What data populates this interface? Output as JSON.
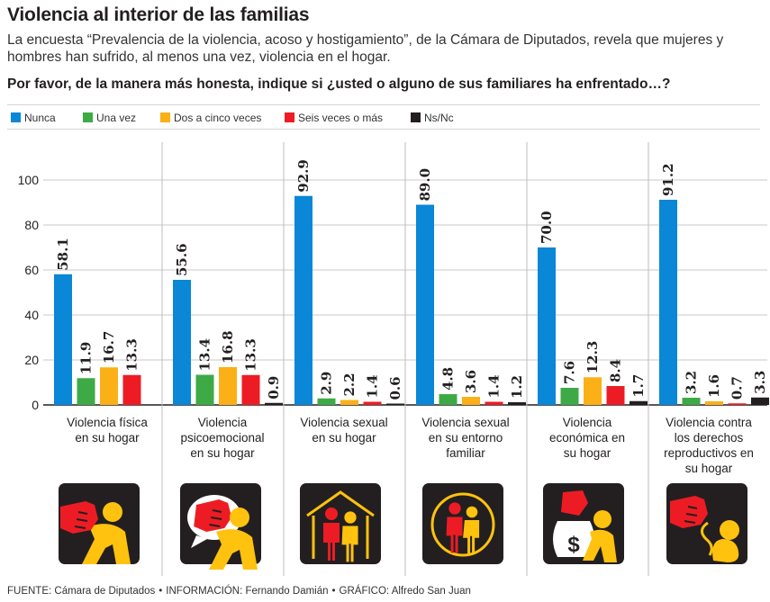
{
  "header": {
    "title": "Violencia al interior de las familias",
    "subtitle": "La encuesta “Prevalencia de la violencia, acoso y hostigamiento”, de la Cámara de Diputados, revela que mujeres y hombres han sufrido, al menos una vez, violencia en el hogar.",
    "question": "Por favor, de la manera más honesta, indique si ¿usted o alguno de sus familiares ha enfrentado…?"
  },
  "footer": {
    "fuente": "FUENTE: Cámara de Diputados",
    "informacion": "INFORMACIÓN: Fernando Damián",
    "grafico": "GRÁFICO: Alfredo San Juan",
    "separator": "•"
  },
  "chart_data": {
    "type": "bar",
    "ylim": [
      0,
      110
    ],
    "yticks": [
      0,
      20,
      40,
      60,
      80,
      100
    ],
    "grid": true,
    "legend_position": "top",
    "categories": [
      [
        "Violencia física",
        "en su hogar"
      ],
      [
        "Violencia",
        "psicoemocional",
        "en su hogar"
      ],
      [
        "Violencia sexual",
        "en su hogar"
      ],
      [
        "Violencia sexual",
        "en su entorno",
        "familiar"
      ],
      [
        "Violencia",
        "económica en",
        "su hogar"
      ],
      [
        "Violencia contra",
        "los derechos",
        "reproductivos  en",
        "su hogar"
      ]
    ],
    "series": [
      {
        "name": "Nunca",
        "color": "#0a87d6",
        "values": [
          58.1,
          55.6,
          92.9,
          89.0,
          70.0,
          91.2
        ]
      },
      {
        "name": "Una vez",
        "color": "#3daa46",
        "values": [
          11.9,
          13.4,
          2.9,
          4.8,
          7.6,
          3.2
        ]
      },
      {
        "name": "Dos a cinco veces",
        "color": "#fbb017",
        "values": [
          16.7,
          16.8,
          2.2,
          3.6,
          12.3,
          1.6
        ]
      },
      {
        "name": "Seis veces o más",
        "color": "#ed1c24",
        "values": [
          13.3,
          13.3,
          1.4,
          1.4,
          8.4,
          0.7
        ]
      },
      {
        "name": "Ns/Nc",
        "color": "#231f20",
        "values": [
          null,
          0.9,
          0.6,
          1.2,
          1.7,
          3.3
        ]
      }
    ],
    "value_labels": [
      [
        "58.1",
        "11.9",
        "16.7",
        "13.3",
        null
      ],
      [
        "55.6",
        "13.4",
        "16.8",
        "13.3",
        "0.9"
      ],
      [
        "92.9",
        "2.9",
        "2.2",
        "1.4",
        "0.6"
      ],
      [
        "89.0",
        "4.8",
        "3.6",
        "1.4",
        "1.2"
      ],
      [
        "70.0",
        "7.6",
        "12.3",
        "8.4",
        "1.7"
      ],
      [
        "91.2",
        "3.2",
        "1.6",
        "0.7",
        "3.3"
      ]
    ],
    "icons": [
      "physical-violence-icon",
      "psychoemotional-violence-icon",
      "sexual-violence-home-icon",
      "sexual-violence-family-icon",
      "economic-violence-icon",
      "reproductive-rights-violence-icon"
    ],
    "icon_colors": {
      "box": "#231f20",
      "figure": "#ffc20e",
      "fist": "#ed1c24"
    }
  }
}
